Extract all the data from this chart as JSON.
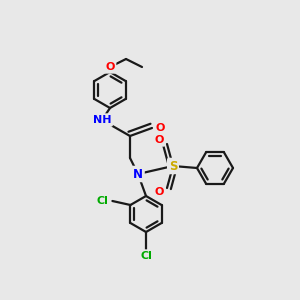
{
  "bg_color": "#e8e8e8",
  "bond_color": "#1a1a1a",
  "atom_colors": {
    "N": "#0000ff",
    "O": "#ff0000",
    "S": "#ccaa00",
    "Cl": "#00aa00",
    "H": "#888888"
  },
  "line_width": 1.6,
  "figsize": [
    3.0,
    3.0
  ],
  "dpi": 100
}
